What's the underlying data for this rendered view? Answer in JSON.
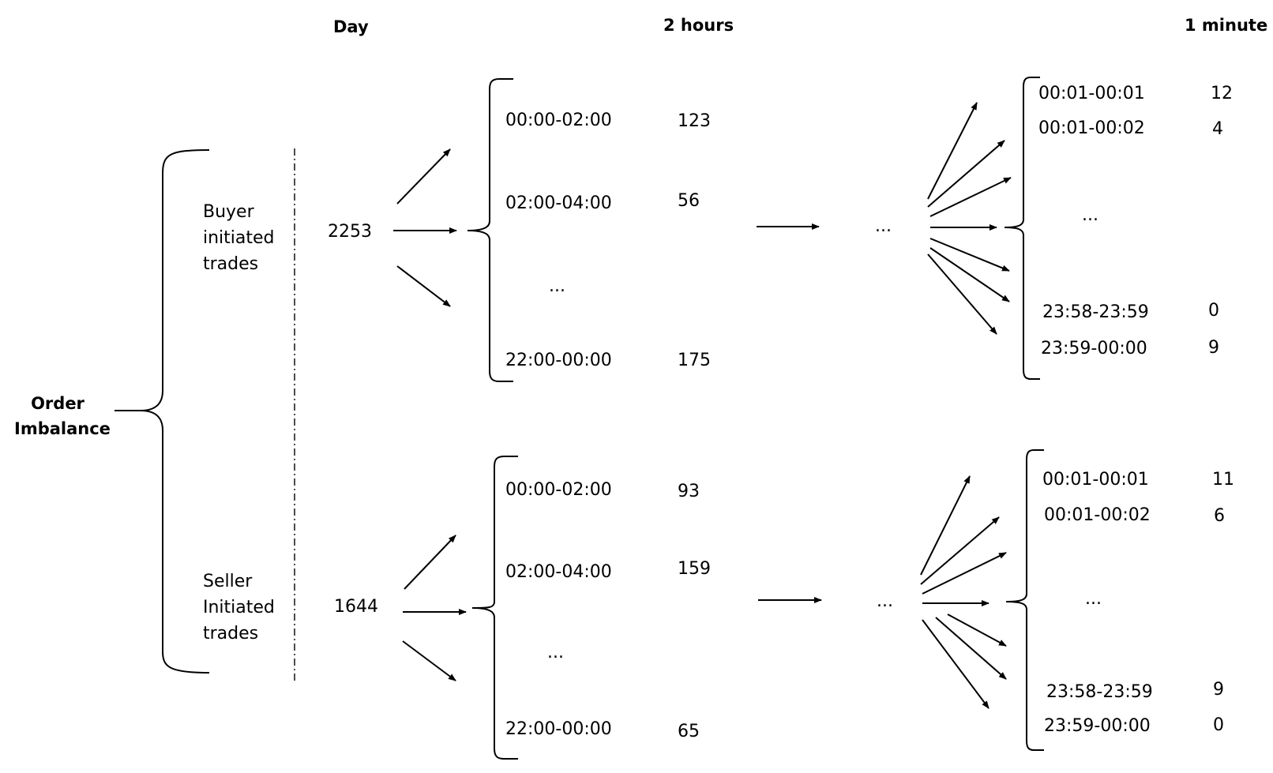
{
  "headers": {
    "day": "Day",
    "two_hours": "2 hours",
    "one_minute": "1 minute"
  },
  "root": {
    "line1": "Order",
    "line2": "Imbalance"
  },
  "ellipsis": "...",
  "buyer": {
    "label_lines": [
      "Buyer",
      "initiated",
      "trades"
    ],
    "day_value": "2253",
    "two_hour": [
      {
        "range": "00:00-02:00",
        "value": "123"
      },
      {
        "range": "02:00-04:00",
        "value": "56"
      },
      {
        "range": "22:00-00:00",
        "value": "175"
      }
    ],
    "one_minute": [
      {
        "range": "00:01-00:01",
        "value": "12"
      },
      {
        "range": "00:01-00:02",
        "value": "4"
      },
      {
        "range": "23:58-23:59",
        "value": "0"
      },
      {
        "range": "23:59-00:00",
        "value": "9"
      }
    ]
  },
  "seller": {
    "label_lines": [
      "Seller",
      "Initiated",
      "trades"
    ],
    "day_value": "1644",
    "two_hour": [
      {
        "range": "00:00-02:00",
        "value": "93"
      },
      {
        "range": "02:00-04:00",
        "value": "159"
      },
      {
        "range": "22:00-00:00",
        "value": "65"
      }
    ],
    "one_minute": [
      {
        "range": "00:01-00:01",
        "value": "11"
      },
      {
        "range": "00:01-00:02",
        "value": "6"
      },
      {
        "range": "23:58-23:59",
        "value": "9"
      },
      {
        "range": "23:59-00:00",
        "value": "0"
      }
    ]
  }
}
